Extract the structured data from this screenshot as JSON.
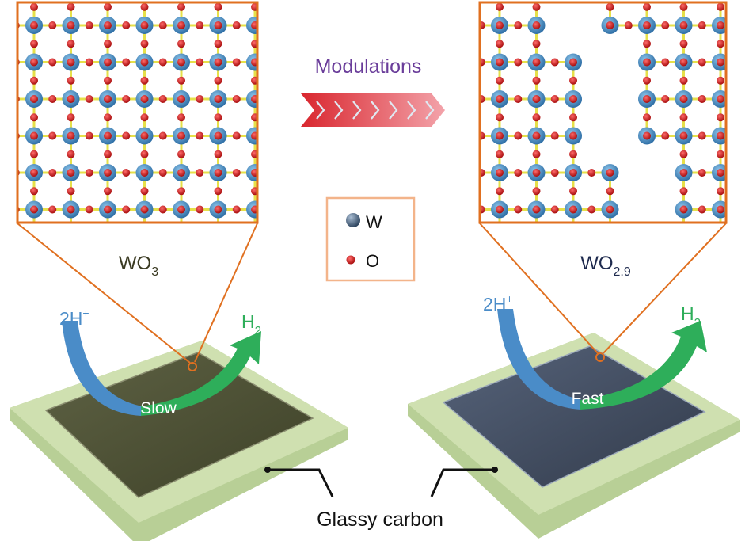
{
  "title": "Modulations",
  "left_panel": {
    "formula": "WO",
    "subscript": "3",
    "reactant": "2H",
    "reactant_sup": "+",
    "product": "H",
    "product_sub": "2",
    "rate": "Slow"
  },
  "right_panel": {
    "formula": "WO",
    "subscript": "2.9",
    "reactant": "2H",
    "reactant_sup": "+",
    "product": "H",
    "product_sub": "2",
    "rate": "Fast"
  },
  "legend": {
    "items": [
      {
        "symbol": "W",
        "color": "#4a6a8c"
      },
      {
        "symbol": "O",
        "color": "#cc1a1a"
      }
    ]
  },
  "substrate_label": "Glassy carbon",
  "colors": {
    "frame": "#e07020",
    "tungsten": "#3d8ac4",
    "oxygen": "#d91c1c",
    "bond": "#e6e04a",
    "title": "#6a3d9a",
    "proton_arrow": "#4a8cc8",
    "h2_arrow": "#2eae5a",
    "substrate": "#c7dba6",
    "wo3_film": "#4e5236",
    "wo29_film": "#3f4a5c"
  }
}
